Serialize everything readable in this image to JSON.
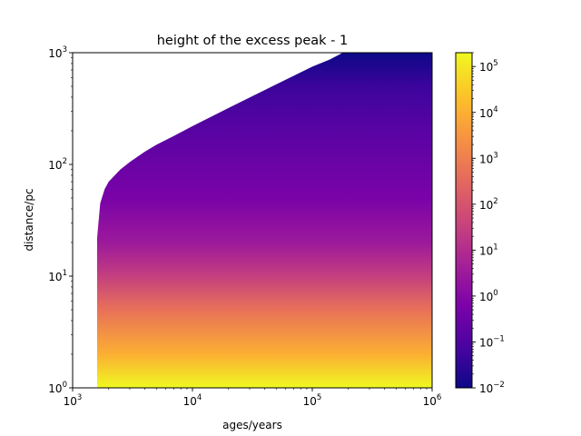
{
  "chart_data": {
    "type": "heatmap",
    "title": "height of the excess peak - 1",
    "xlabel": "ages/years",
    "ylabel": "distance/pc",
    "xscale": "log",
    "yscale": "log",
    "xlim": [
      1000,
      1000000
    ],
    "ylim": [
      1,
      1000
    ],
    "x_ticks": [
      {
        "value": 1000,
        "base": "10",
        "exp": "3"
      },
      {
        "value": 10000,
        "base": "10",
        "exp": "4"
      },
      {
        "value": 100000,
        "base": "10",
        "exp": "5"
      },
      {
        "value": 1000000,
        "base": "10",
        "exp": "6"
      }
    ],
    "y_ticks": [
      {
        "value": 1,
        "base": "10",
        "exp": "0"
      },
      {
        "value": 10,
        "base": "10",
        "exp": "1"
      },
      {
        "value": 100,
        "base": "10",
        "exp": "2"
      },
      {
        "value": 1000,
        "base": "10",
        "exp": "3"
      }
    ],
    "colorbar": {
      "scale": "log",
      "colormap": "plasma",
      "range": [
        0.01,
        200000
      ],
      "ticks": [
        {
          "value": 0.01,
          "base": "10",
          "exp": "−2"
        },
        {
          "value": 0.1,
          "base": "10",
          "exp": "−1"
        },
        {
          "value": 1,
          "base": "10",
          "exp": "0"
        },
        {
          "value": 10,
          "base": "10",
          "exp": "1"
        },
        {
          "value": 100,
          "base": "10",
          "exp": "2"
        },
        {
          "value": 1000,
          "base": "10",
          "exp": "3"
        },
        {
          "value": 10000,
          "base": "10",
          "exp": "4"
        },
        {
          "value": 100000,
          "base": "10",
          "exp": "5"
        }
      ]
    },
    "data_region": {
      "min_age": 1600,
      "upper_boundary": [
        {
          "age": 1600,
          "distance": 22
        },
        {
          "age": 1700,
          "distance": 45
        },
        {
          "age": 1850,
          "distance": 60
        },
        {
          "age": 2000,
          "distance": 70
        },
        {
          "age": 2500,
          "distance": 90
        },
        {
          "age": 3000,
          "distance": 105
        },
        {
          "age": 4000,
          "distance": 130
        },
        {
          "age": 5000,
          "distance": 150
        },
        {
          "age": 7000,
          "distance": 180
        },
        {
          "age": 10000,
          "distance": 220
        },
        {
          "age": 20000,
          "distance": 320
        },
        {
          "age": 50000,
          "distance": 520
        },
        {
          "age": 100000,
          "distance": 750
        },
        {
          "age": 140000,
          "distance": 870
        },
        {
          "age": 180000,
          "distance": 1000
        }
      ],
      "value_vs_distance": [
        {
          "distance": 1,
          "value": 200000
        },
        {
          "distance": 2,
          "value": 10000
        },
        {
          "distance": 5,
          "value": 500
        },
        {
          "distance": 10,
          "value": 30
        },
        {
          "distance": 20,
          "value": 3
        },
        {
          "distance": 50,
          "value": 0.6
        },
        {
          "distance": 100,
          "value": 0.3
        },
        {
          "distance": 200,
          "value": 0.15
        },
        {
          "distance": 500,
          "value": 0.05
        },
        {
          "distance": 1000,
          "value": 0.01
        }
      ]
    }
  }
}
